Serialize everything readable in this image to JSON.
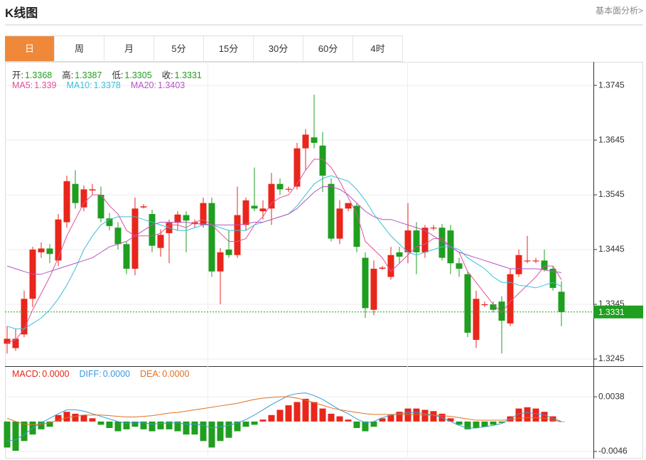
{
  "header": {
    "title": "K线图",
    "link": "基本面分析>"
  },
  "tabs": [
    "日",
    "周",
    "月",
    "5分",
    "15分",
    "30分",
    "60分",
    "4时"
  ],
  "active_tab": 0,
  "chart_data": [
    {
      "type": "candlestick",
      "up_color": "#e8261b",
      "down_color": "#1f9e1f",
      "info_labels": [
        "开:",
        "高:",
        "低:",
        "收:"
      ],
      "open": [
        1.3273,
        1.3265,
        1.329,
        1.3355,
        1.344,
        1.3447,
        1.3425,
        1.3495,
        1.3565,
        1.3522,
        1.3553,
        1.3545,
        1.3502,
        1.3485,
        1.3455,
        1.341,
        1.3522,
        1.351,
        1.3448,
        1.3475,
        1.3494,
        1.3508,
        1.3492,
        1.349,
        1.353,
        1.3405,
        1.3445,
        1.3435,
        1.349,
        1.3525,
        1.3515,
        1.352,
        1.3565,
        1.3555,
        1.356,
        1.363,
        1.365,
        1.3635,
        1.3565,
        1.3465,
        1.352,
        1.3525,
        1.343,
        1.3335,
        1.341,
        1.3395,
        1.344,
        1.344,
        1.348,
        1.344,
        1.3485,
        1.3485,
        1.348,
        1.342,
        1.34,
        1.328,
        1.3345,
        1.3345,
        1.335,
        1.331,
        1.34,
        1.3425,
        1.3425,
        1.3425,
        1.341,
        1.3368
      ],
      "high": [
        1.3305,
        1.33,
        1.337,
        1.345,
        1.3458,
        1.3455,
        1.351,
        1.358,
        1.359,
        1.3562,
        1.3565,
        1.356,
        1.3512,
        1.3495,
        1.346,
        1.354,
        1.3528,
        1.3518,
        1.3482,
        1.35,
        1.3515,
        1.3515,
        1.35,
        1.354,
        1.354,
        1.3448,
        1.348,
        1.356,
        1.354,
        1.3595,
        1.3535,
        1.3585,
        1.3575,
        1.356,
        1.364,
        1.3665,
        1.3728,
        1.366,
        1.3575,
        1.3535,
        1.353,
        1.353,
        1.344,
        1.3425,
        1.3415,
        1.345,
        1.345,
        1.353,
        1.3495,
        1.349,
        1.349,
        1.3492,
        1.349,
        1.343,
        1.3405,
        1.337,
        1.335,
        1.335,
        1.336,
        1.341,
        1.3445,
        1.347,
        1.343,
        1.3445,
        1.3415,
        1.3387
      ],
      "low": [
        1.3255,
        1.326,
        1.3285,
        1.334,
        1.343,
        1.342,
        1.3415,
        1.3485,
        1.352,
        1.3515,
        1.3545,
        1.3495,
        1.348,
        1.3445,
        1.34,
        1.3398,
        1.352,
        1.344,
        1.3432,
        1.342,
        1.348,
        1.344,
        1.3485,
        1.3485,
        1.3395,
        1.3345,
        1.343,
        1.343,
        1.348,
        1.3515,
        1.35,
        1.349,
        1.3545,
        1.355,
        1.3555,
        1.359,
        1.363,
        1.355,
        1.346,
        1.3455,
        1.3515,
        1.344,
        1.332,
        1.3325,
        1.3408,
        1.339,
        1.342,
        1.342,
        1.34,
        1.343,
        1.348,
        1.3425,
        1.34,
        1.3395,
        1.3285,
        1.3265,
        1.334,
        1.333,
        1.3255,
        1.3305,
        1.3395,
        1.342,
        1.342,
        1.3405,
        1.337,
        1.3305
      ],
      "close": [
        1.3282,
        1.3282,
        1.3355,
        1.3445,
        1.3447,
        1.3437,
        1.35,
        1.357,
        1.353,
        1.3555,
        1.3555,
        1.3502,
        1.3488,
        1.3455,
        1.341,
        1.352,
        1.3524,
        1.3452,
        1.3472,
        1.3494,
        1.3509,
        1.3498,
        1.3495,
        1.353,
        1.3405,
        1.344,
        1.3435,
        1.3508,
        1.3535,
        1.352,
        1.352,
        1.3565,
        1.3555,
        1.3556,
        1.363,
        1.3655,
        1.364,
        1.358,
        1.3465,
        1.352,
        1.353,
        1.345,
        1.3338,
        1.341,
        1.3412,
        1.3435,
        1.3432,
        1.348,
        1.344,
        1.3485,
        1.3485,
        1.343,
        1.342,
        1.341,
        1.3293,
        1.3355,
        1.3345,
        1.3335,
        1.3315,
        1.34,
        1.3435,
        1.3425,
        1.3425,
        1.3408,
        1.3375,
        1.3331
      ],
      "ma": [
        {
          "name": "MA5:",
          "color": "#e0509a",
          "values": [
            1.3275,
            1.328,
            1.33,
            1.3335,
            1.3365,
            1.3395,
            1.343,
            1.347,
            1.35,
            1.353,
            1.3545,
            1.3545,
            1.3525,
            1.351,
            1.348,
            1.347,
            1.347,
            1.347,
            1.3475,
            1.349,
            1.349,
            1.3485,
            1.3495,
            1.35,
            1.349,
            1.3475,
            1.346,
            1.346,
            1.3465,
            1.349,
            1.3505,
            1.353,
            1.354,
            1.3545,
            1.3565,
            1.359,
            1.361,
            1.361,
            1.3595,
            1.357,
            1.354,
            1.351,
            1.346,
            1.3445,
            1.343,
            1.3405,
            1.342,
            1.3435,
            1.345,
            1.3455,
            1.3465,
            1.3465,
            1.345,
            1.344,
            1.3405,
            1.3385,
            1.3365,
            1.3345,
            1.333,
            1.335,
            1.3365,
            1.338,
            1.3395,
            1.3415,
            1.3415,
            1.339
          ]
        },
        {
          "name": "MA10:",
          "color": "#3bbfd8",
          "values": [
            1.3305,
            1.33,
            1.33,
            1.331,
            1.332,
            1.3335,
            1.3355,
            1.338,
            1.341,
            1.3445,
            1.347,
            1.349,
            1.35,
            1.3505,
            1.3505,
            1.3505,
            1.35,
            1.3495,
            1.349,
            1.3485,
            1.348,
            1.348,
            1.3485,
            1.349,
            1.349,
            1.3485,
            1.348,
            1.348,
            1.348,
            1.349,
            1.3495,
            1.35,
            1.3505,
            1.351,
            1.3525,
            1.3545,
            1.3565,
            1.3575,
            1.358,
            1.3575,
            1.357,
            1.3555,
            1.3535,
            1.351,
            1.349,
            1.347,
            1.3455,
            1.344,
            1.3435,
            1.344,
            1.3445,
            1.345,
            1.345,
            1.3445,
            1.343,
            1.342,
            1.341,
            1.3395,
            1.3385,
            1.3385,
            1.338,
            1.3378,
            1.3375,
            1.338,
            1.3385,
            1.3378
          ]
        },
        {
          "name": "MA20:",
          "color": "#b455c4",
          "values": [
            1.3415,
            1.341,
            1.3405,
            1.34,
            1.34,
            1.3405,
            1.341,
            1.3415,
            1.342,
            1.3425,
            1.343,
            1.344,
            1.345,
            1.3455,
            1.346,
            1.347,
            1.348,
            1.349,
            1.3495,
            1.3495,
            1.3495,
            1.3495,
            1.3492,
            1.3492,
            1.349,
            1.349,
            1.349,
            1.349,
            1.3492,
            1.3495,
            1.3495,
            1.35,
            1.3505,
            1.351,
            1.352,
            1.3535,
            1.355,
            1.356,
            1.356,
            1.3555,
            1.3545,
            1.353,
            1.3515,
            1.3505,
            1.35,
            1.35,
            1.3495,
            1.349,
            1.3485,
            1.348,
            1.347,
            1.346,
            1.345,
            1.344,
            1.3435,
            1.343,
            1.3425,
            1.342,
            1.3415,
            1.341,
            1.341,
            1.341,
            1.341,
            1.3408,
            1.3405,
            1.3403
          ]
        }
      ],
      "ylim": [
        1.3788,
        1.3232
      ],
      "yticks": [
        1.3745,
        1.3645,
        1.3545,
        1.3445,
        1.3345,
        1.3245
      ],
      "grid": true,
      "last_price_color": "#1f9e1f"
    },
    {
      "type": "macd",
      "ylim": [
        0.0083,
        -0.0057
      ],
      "yticks": [
        0.0038,
        -0.0046
      ],
      "grid": true,
      "series": [
        {
          "name": "MACD:",
          "kind": "histogram",
          "color": "#e8261b",
          "neg_color": "#1f9e1f",
          "legend_value": {
            "value": 0,
            "label": "0.0000"
          },
          "values": [
            -0.004,
            -0.0045,
            -0.003,
            -0.002,
            -0.0012,
            -0.0008,
            0.001,
            0.0015,
            0.0012,
            0.001,
            0.0005,
            -0.0005,
            -0.001,
            -0.0015,
            -0.0012,
            -0.0008,
            -0.0012,
            -0.0015,
            -0.0012,
            -0.0012,
            -0.0015,
            -0.002,
            -0.002,
            -0.003,
            -0.004,
            -0.003,
            -0.0025,
            -0.0015,
            -0.0008,
            -0.0005,
            0.0003,
            0.001,
            0.0018,
            0.0025,
            0.003,
            0.0035,
            0.003,
            0.002,
            0.0012,
            0.0008,
            0.0003,
            -0.001,
            -0.0015,
            -0.0008,
            0.0005,
            0.001,
            0.0015,
            0.002,
            0.002,
            0.0018,
            0.0016,
            0.0012,
            0.0005,
            -0.0005,
            -0.0012,
            -0.001,
            -0.0008,
            -0.0005,
            -0.0002,
            0.0008,
            0.002,
            0.0022,
            0.002,
            0.0015,
            0.0008,
            0
          ]
        },
        {
          "name": "DIFF:",
          "kind": "line",
          "color": "#3a9ad9",
          "legend_value": {
            "value": 0,
            "label": "0.0000"
          },
          "values": [
            -0.003,
            -0.0028,
            -0.002,
            -0.001,
            -0.0002,
            0.0005,
            0.0012,
            0.0018,
            0.0018,
            0.0016,
            0.0012,
            0.0008,
            0.0004,
            0,
            -0.0003,
            -0.0001,
            -0.0002,
            -0.0004,
            -0.0003,
            -0.0002,
            -0.0002,
            -0.0004,
            -0.0004,
            -0.0006,
            -0.001,
            -0.0008,
            -0.0006,
            -0.0002,
            0.0003,
            0.001,
            0.0018,
            0.0026,
            0.0033,
            0.004,
            0.0043,
            0.0044,
            0.004,
            0.0034,
            0.0026,
            0.0018,
            0.0012,
            0.0004,
            -0.0002,
            0,
            0.0006,
            0.001,
            0.0012,
            0.0014,
            0.0014,
            0.0012,
            0.001,
            0.0006,
            0,
            -0.0006,
            -0.001,
            -0.001,
            -0.0008,
            -0.0006,
            -0.0003,
            0.0004,
            0.0012,
            0.0014,
            0.0012,
            0.001,
            0.0005,
            0
          ]
        },
        {
          "name": "DEA:",
          "kind": "line",
          "color": "#e07020",
          "legend_value": {
            "value": 0,
            "label": "0.0000"
          },
          "values": [
            0.0005,
            0,
            -0.0004,
            -0.0005,
            -0.0004,
            -0.0002,
            0.0002,
            0.0006,
            0.0008,
            0.001,
            0.001,
            0.001,
            0.0009,
            0.0008,
            0.0007,
            0.0007,
            0.0008,
            0.0009,
            0.0011,
            0.0013,
            0.0014,
            0.0016,
            0.0018,
            0.002,
            0.0022,
            0.0024,
            0.0026,
            0.0028,
            0.0031,
            0.0034,
            0.0036,
            0.0037,
            0.0038,
            0.0038,
            0.0036,
            0.0033,
            0.0029,
            0.0025,
            0.0021,
            0.0018,
            0.0016,
            0.0014,
            0.0012,
            0.0011,
            0.0011,
            0.0011,
            0.0011,
            0.0011,
            0.0011,
            0.001,
            0.001,
            0.0009,
            0.0008,
            0.0006,
            0.0004,
            0.0002,
            0.0002,
            0.0002,
            0.0002,
            0.0003,
            0.0005,
            0.0006,
            0.0006,
            0.0005,
            0.0002,
            0
          ]
        }
      ]
    }
  ]
}
